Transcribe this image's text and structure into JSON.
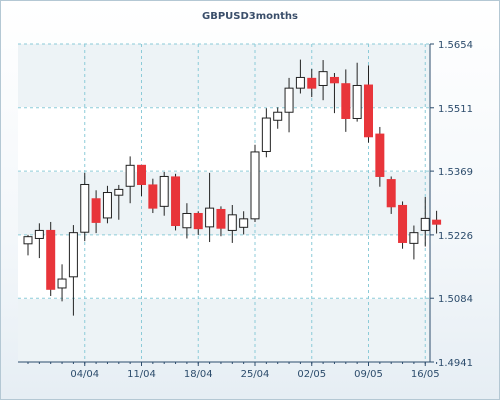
{
  "chart_data": {
    "type": "candlestick",
    "title": "GBPUSD3months",
    "x_ticks": [
      "04/04",
      "11/04",
      "18/04",
      "25/04",
      "02/05",
      "09/05",
      "16/05"
    ],
    "y_ticks": [
      1.5654,
      1.5511,
      1.5369,
      1.5226,
      1.5084,
      1.4941
    ],
    "ylim": [
      1.4941,
      1.5654
    ],
    "grid": true,
    "colors": {
      "up": "#ffffff",
      "down": "#e8353a",
      "wick": "#222222",
      "grid": "#8ccbd8"
    },
    "candles": [
      {
        "date": "30/03",
        "open": 1.5206,
        "high": 1.5226,
        "low": 1.518,
        "close": 1.5222
      },
      {
        "date": "31/03",
        "open": 1.5218,
        "high": 1.5252,
        "low": 1.5174,
        "close": 1.5236
      },
      {
        "date": "01/04",
        "open": 1.5236,
        "high": 1.5255,
        "low": 1.5089,
        "close": 1.5104
      },
      {
        "date": "02/04",
        "open": 1.5107,
        "high": 1.516,
        "low": 1.5077,
        "close": 1.5127
      },
      {
        "date": "03/04",
        "open": 1.5132,
        "high": 1.5248,
        "low": 1.5045,
        "close": 1.5231
      },
      {
        "date": "04/04",
        "open": 1.5232,
        "high": 1.5365,
        "low": 1.5212,
        "close": 1.5339
      },
      {
        "date": "07/04",
        "open": 1.5307,
        "high": 1.5326,
        "low": 1.523,
        "close": 1.5254
      },
      {
        "date": "08/04",
        "open": 1.5264,
        "high": 1.5336,
        "low": 1.5252,
        "close": 1.5321
      },
      {
        "date": "09/04",
        "open": 1.5315,
        "high": 1.5338,
        "low": 1.526,
        "close": 1.5328
      },
      {
        "date": "10/04",
        "open": 1.5335,
        "high": 1.5402,
        "low": 1.5297,
        "close": 1.5382
      },
      {
        "date": "11/04",
        "open": 1.5382,
        "high": 1.5382,
        "low": 1.5313,
        "close": 1.5339
      },
      {
        "date": "14/04",
        "open": 1.5338,
        "high": 1.5352,
        "low": 1.5275,
        "close": 1.5286
      },
      {
        "date": "15/04",
        "open": 1.529,
        "high": 1.5367,
        "low": 1.5269,
        "close": 1.5357
      },
      {
        "date": "16/04",
        "open": 1.5356,
        "high": 1.5363,
        "low": 1.5236,
        "close": 1.5247
      },
      {
        "date": "17/04",
        "open": 1.5242,
        "high": 1.5297,
        "low": 1.5218,
        "close": 1.5274
      },
      {
        "date": "18/04",
        "open": 1.5274,
        "high": 1.5279,
        "low": 1.5226,
        "close": 1.524
      },
      {
        "date": "21/04",
        "open": 1.5244,
        "high": 1.5365,
        "low": 1.521,
        "close": 1.5286
      },
      {
        "date": "22/04",
        "open": 1.5283,
        "high": 1.529,
        "low": 1.5223,
        "close": 1.5241
      },
      {
        "date": "23/04",
        "open": 1.5236,
        "high": 1.5293,
        "low": 1.5208,
        "close": 1.5271
      },
      {
        "date": "24/04",
        "open": 1.5243,
        "high": 1.5279,
        "low": 1.5227,
        "close": 1.5262
      },
      {
        "date": "25/04",
        "open": 1.5262,
        "high": 1.5428,
        "low": 1.5255,
        "close": 1.5412
      },
      {
        "date": "28/04",
        "open": 1.5413,
        "high": 1.551,
        "low": 1.54,
        "close": 1.5488
      },
      {
        "date": "29/04",
        "open": 1.5483,
        "high": 1.5512,
        "low": 1.5464,
        "close": 1.5501
      },
      {
        "date": "30/04",
        "open": 1.5501,
        "high": 1.5578,
        "low": 1.5456,
        "close": 1.5555
      },
      {
        "date": "01/05",
        "open": 1.5555,
        "high": 1.5619,
        "low": 1.5543,
        "close": 1.5579
      },
      {
        "date": "02/05",
        "open": 1.5577,
        "high": 1.5598,
        "low": 1.5535,
        "close": 1.5555
      },
      {
        "date": "05/05",
        "open": 1.5561,
        "high": 1.5618,
        "low": 1.5528,
        "close": 1.5592
      },
      {
        "date": "06/05",
        "open": 1.5579,
        "high": 1.5589,
        "low": 1.5499,
        "close": 1.5567
      },
      {
        "date": "07/05",
        "open": 1.5565,
        "high": 1.5597,
        "low": 1.5457,
        "close": 1.5487
      },
      {
        "date": "08/05",
        "open": 1.5487,
        "high": 1.5612,
        "low": 1.548,
        "close": 1.5561
      },
      {
        "date": "09/05",
        "open": 1.5562,
        "high": 1.5606,
        "low": 1.5433,
        "close": 1.5446
      },
      {
        "date": "12/05",
        "open": 1.5452,
        "high": 1.5468,
        "low": 1.5334,
        "close": 1.5357
      },
      {
        "date": "13/05",
        "open": 1.535,
        "high": 1.5357,
        "low": 1.5273,
        "close": 1.5289
      },
      {
        "date": "14/05",
        "open": 1.5292,
        "high": 1.5301,
        "low": 1.5195,
        "close": 1.5209
      },
      {
        "date": "15/05",
        "open": 1.5207,
        "high": 1.5247,
        "low": 1.5171,
        "close": 1.5231
      },
      {
        "date": "16/05",
        "open": 1.5236,
        "high": 1.5311,
        "low": 1.52,
        "close": 1.5263
      },
      {
        "date": "19/05",
        "open": 1.5259,
        "high": 1.528,
        "low": 1.5229,
        "close": 1.525
      }
    ]
  }
}
